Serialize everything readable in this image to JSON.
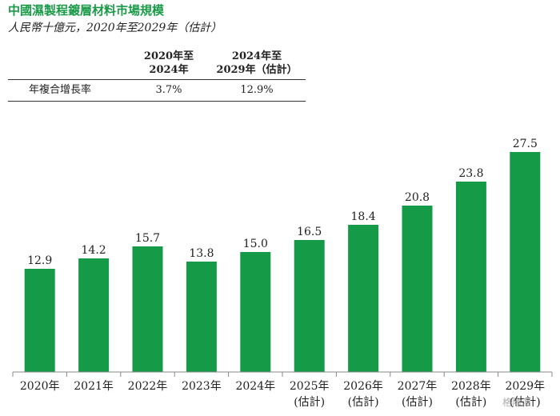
{
  "title": "中國濕製程鍍層材料市場規模",
  "subtitle": "人民幣十億元，2020年至2029年（估計）",
  "cagr_table": {
    "headers": [
      "",
      [
        "2020年至",
        "2024年"
      ],
      [
        "2024年至",
        "2029年（估計）"
      ]
    ],
    "rows": [
      {
        "label": "年複合增長率",
        "values": [
          "3.7%",
          "12.9%"
        ]
      }
    ]
  },
  "chart_data": {
    "type": "bar",
    "categories": [
      [
        "2020年"
      ],
      [
        "2021年"
      ],
      [
        "2022年"
      ],
      [
        "2023年"
      ],
      [
        "2024年"
      ],
      [
        "2025年",
        "(估計)"
      ],
      [
        "2026年",
        "(估計)"
      ],
      [
        "2027年",
        "(估計)"
      ],
      [
        "2028年",
        "(估計)"
      ],
      [
        "2029年",
        "(估計)"
      ]
    ],
    "values": [
      12.9,
      14.2,
      15.7,
      13.8,
      15.0,
      16.5,
      18.4,
      20.8,
      23.8,
      27.5
    ],
    "value_labels": [
      "12.9",
      "14.2",
      "15.7",
      "13.8",
      "15.0",
      "16.5",
      "18.4",
      "20.8",
      "23.8",
      "27.5"
    ],
    "ylim": [
      0,
      27.5
    ],
    "grid": false,
    "colors": {
      "bar": "#159a48",
      "axis": "#888888"
    }
  },
  "watermark": "格隆汇"
}
